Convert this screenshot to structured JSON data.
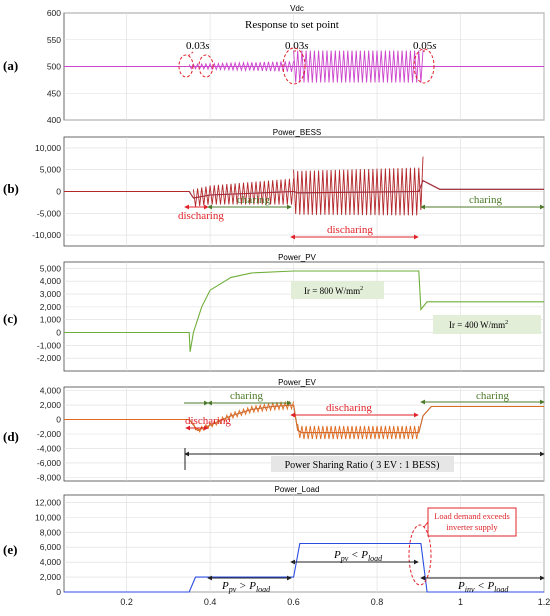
{
  "chart_data": [
    {
      "panel_label": "(a)",
      "title": "Vdc",
      "type": "line",
      "ylim": [
        400,
        600
      ],
      "yticks": [
        400,
        450,
        500,
        550,
        600
      ],
      "annotations": [
        "Response to set point",
        "0.03s",
        "0.03s",
        "0.05s"
      ],
      "series": [
        {
          "color": "#cc44cc",
          "points": [
            [
              0.05,
              500
            ],
            [
              0.35,
              500
            ],
            [
              0.4,
              500
            ],
            [
              0.6,
              500
            ],
            [
              0.9,
              500
            ],
            [
              1.2,
              500
            ]
          ]
        }
      ],
      "osc_bands": [
        {
          "start": 0.35,
          "end": 0.6,
          "amp": [
            4,
            10
          ],
          "color": "#cc44cc"
        },
        {
          "start": 0.6,
          "end": 0.91,
          "amp": [
            30,
            30
          ],
          "color": "#cc44cc"
        }
      ]
    },
    {
      "panel_label": "(b)",
      "title": "Power_BESS",
      "type": "line",
      "ylim": [
        -12500,
        12500
      ],
      "yticks": [
        -10000,
        -5000,
        0,
        5000,
        10000
      ],
      "ytick_labels": [
        "-10,000",
        "-5,000",
        "0",
        "5,000",
        "10,000"
      ],
      "annotations": [
        "discharing",
        "charing",
        "discharing",
        "charing"
      ],
      "series": [
        {
          "color": "#3d9be0",
          "points": [
            [
              0.05,
              0
            ],
            [
              0.35,
              0
            ],
            [
              0.36,
              -1500
            ],
            [
              0.4,
              -800
            ],
            [
              0.6,
              0
            ],
            [
              0.61,
              -300
            ],
            [
              0.9,
              0
            ],
            [
              0.91,
              2500
            ],
            [
              0.95,
              500
            ],
            [
              1.2,
              500
            ]
          ]
        },
        {
          "color": "#b3262a",
          "points": [
            [
              0.05,
              0
            ],
            [
              0.35,
              0
            ],
            [
              0.36,
              -1500
            ],
            [
              0.4,
              -800
            ],
            [
              0.6,
              0
            ],
            [
              0.61,
              -300
            ],
            [
              0.9,
              0
            ],
            [
              0.91,
              2500
            ],
            [
              0.95,
              500
            ],
            [
              1.2,
              500
            ]
          ]
        }
      ],
      "osc_bands": [
        {
          "start": 0.36,
          "end": 0.6,
          "amp": [
            2000,
            3000
          ],
          "color": "#b3262a"
        },
        {
          "start": 0.6,
          "end": 0.91,
          "amp": [
            5000,
            5500
          ],
          "color": "#b3262a"
        }
      ]
    },
    {
      "panel_label": "(c)",
      "title": "Power_PV",
      "type": "line",
      "ylim": [
        -3000,
        5500
      ],
      "yticks": [
        -2000,
        -1000,
        0,
        1000,
        2000,
        3000,
        4000,
        5000
      ],
      "ytick_labels": [
        "-2,000",
        "-1,000",
        "0",
        "1,000",
        "2,000",
        "3,000",
        "4,000",
        "5,000"
      ],
      "annotations": [
        "Ir = 800 W/mm²",
        "Ir = 400 W/mm²"
      ],
      "series": [
        {
          "color": "#6fae3a",
          "points": [
            [
              0.05,
              0
            ],
            [
              0.35,
              0
            ],
            [
              0.352,
              -1500
            ],
            [
              0.36,
              0
            ],
            [
              0.38,
              2000
            ],
            [
              0.4,
              3300
            ],
            [
              0.45,
              4300
            ],
            [
              0.5,
              4650
            ],
            [
              0.6,
              4800
            ],
            [
              0.9,
              4800
            ],
            [
              0.905,
              1800
            ],
            [
              0.92,
              2400
            ],
            [
              1.2,
              2400
            ]
          ]
        }
      ]
    },
    {
      "panel_label": "(d)",
      "title": "Power_EV",
      "type": "line",
      "ylim": [
        -8500,
        4500
      ],
      "yticks": [
        -8000,
        -6000,
        -4000,
        -2000,
        0,
        2000,
        4000
      ],
      "ytick_labels": [
        "-8,000",
        "-6,000",
        "-4,000",
        "-2,000",
        "0",
        "2,000",
        "4,000"
      ],
      "annotations": [
        "discharing",
        "charing",
        "discharing",
        "charing",
        "Power Sharing Ratio ( 3 EV : 1 BESS)"
      ],
      "series": [
        {
          "color": "#3d9be0",
          "points": [
            [
              0.05,
              0
            ],
            [
              0.35,
              0
            ],
            [
              0.37,
              -1500
            ],
            [
              0.4,
              -800
            ],
            [
              0.45,
              500
            ],
            [
              0.5,
              1400
            ],
            [
              0.55,
              1800
            ],
            [
              0.6,
              2000
            ],
            [
              0.61,
              -1500
            ],
            [
              0.62,
              -1800
            ],
            [
              0.9,
              -1800
            ],
            [
              0.91,
              500
            ],
            [
              0.93,
              1800
            ],
            [
              1.2,
              1800
            ]
          ]
        },
        {
          "color": "#e06a1f",
          "points": [
            [
              0.05,
              0
            ],
            [
              0.35,
              0
            ],
            [
              0.37,
              -1500
            ],
            [
              0.4,
              -800
            ],
            [
              0.45,
              500
            ],
            [
              0.5,
              1400
            ],
            [
              0.55,
              1800
            ],
            [
              0.6,
              2000
            ],
            [
              0.61,
              -1500
            ],
            [
              0.62,
              -1800
            ],
            [
              0.9,
              -1800
            ],
            [
              0.91,
              500
            ],
            [
              0.93,
              1800
            ],
            [
              1.2,
              1800
            ]
          ]
        }
      ],
      "osc_bands": [
        {
          "start": 0.36,
          "end": 0.6,
          "amp": [
            300,
            500
          ],
          "color": "#e06a1f"
        },
        {
          "start": 0.61,
          "end": 0.9,
          "amp": [
            900,
            900
          ],
          "color": "#e06a1f"
        }
      ]
    },
    {
      "panel_label": "(e)",
      "title": "Power_Load",
      "type": "line",
      "ylim": [
        0,
        13000
      ],
      "yticks": [
        0,
        2000,
        4000,
        6000,
        8000,
        10000,
        12000
      ],
      "ytick_labels": [
        "0",
        "2,000",
        "4,000",
        "6,000",
        "8,000",
        "10,000",
        "12,000"
      ],
      "xlim": [
        0.05,
        1.2
      ],
      "xticks": [
        0.2,
        0.4,
        0.6,
        0.8,
        1.0,
        1.2
      ],
      "xtick_labels": [
        "0.2",
        "0.4",
        "0.6",
        "0.8",
        "1",
        "1.2"
      ],
      "annotations": [
        "Load demand exceeds inverter supply",
        "Ppv > Pload",
        "Ppv < Pload",
        "Pinv < Pload"
      ],
      "series": [
        {
          "color": "#2a4de0",
          "points": [
            [
              0.05,
              0
            ],
            [
              0.35,
              0
            ],
            [
              0.365,
              2000
            ],
            [
              0.6,
              2000
            ],
            [
              0.615,
              6500
            ],
            [
              0.905,
              6500
            ],
            [
              0.92,
              0
            ],
            [
              1.2,
              0
            ]
          ]
        }
      ]
    }
  ],
  "labels": {
    "a": {
      "panel": "(a)",
      "title": "Vdc",
      "sub": "Response to set point",
      "t1": "0.03",
      "t2": "0.03",
      "t3": "0.05",
      "unit": "s"
    },
    "b": {
      "panel": "(b)",
      "title": "Power_BESS",
      "dis1": "discharing",
      "ch1": "charing",
      "dis2": "discharing",
      "ch2": "charing"
    },
    "c": {
      "panel": "(c)",
      "title": "Power_PV",
      "ir1": "Ir = 800 W/mm",
      "ir2": "Ir = 400 W/mm",
      "sup": "2"
    },
    "d": {
      "panel": "(d)",
      "title": "Power_EV",
      "dis1": "discharing",
      "ch1": "charing",
      "dis2": "discharing",
      "ch2": "charing",
      "ratio": "Power Sharing Ratio ( 3 EV : 1 BESS)"
    },
    "e": {
      "panel": "(e)",
      "title": "Power_Load",
      "box1": "Load demand exceeds",
      "box2": "inverter supply",
      "p1a": "P",
      "p1b": "pv",
      "p1c": " > P",
      "p1d": "load",
      "p2a": "P",
      "p2b": "pv",
      "p2c": " < P",
      "p2d": "load",
      "p3a": "P",
      "p3b": "inv",
      "p3c": " < P",
      "p3d": "load"
    }
  },
  "style": {
    "grid": "#dcdcdc",
    "axis": "#444444",
    "annot_red": "#e0232a",
    "annot_green": "#4d7a2a"
  }
}
